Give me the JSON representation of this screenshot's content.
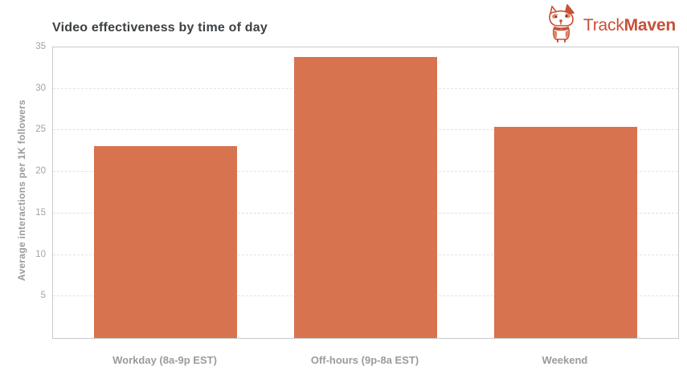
{
  "header": {
    "title": "Video effectiveness by time of day",
    "logo": {
      "brand_first": "Track",
      "brand_second": "Maven",
      "brand_color": "#c75038",
      "icon": "corgi-mascot-icon"
    }
  },
  "chart_data": {
    "type": "bar",
    "title": "Video effectiveness by time of day",
    "categories": [
      "Workday (8a-9p EST)",
      "Off-hours (9p-8a EST)",
      "Weekend"
    ],
    "values": [
      23.1,
      33.8,
      25.4
    ],
    "xlabel": "",
    "ylabel": "Average interactions per 1K followers",
    "ylim": [
      0,
      35
    ],
    "yticks": [
      5,
      10,
      15,
      20,
      25,
      30,
      35
    ],
    "grid": "horizontal-dashed",
    "legend": "none",
    "bar_color": "#d8734f",
    "axis_border_color": "#c9c9c9",
    "tick_label_color": "#a3a3a3"
  }
}
